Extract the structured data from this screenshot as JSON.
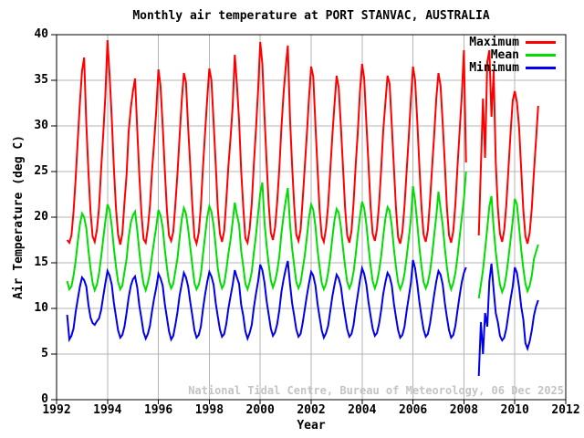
{
  "title": "Monthly air temperature at PORT STANVAC, AUSTRALIA",
  "watermark": "National Tidal Centre, Bureau of Meteorology, 06 Dec 2025",
  "colors": {
    "background": "#ffffff",
    "axis": "#000000",
    "grid": "#b4b4b4",
    "watermark": "#c4c4c4",
    "maximum": "#ff0000",
    "mean": "#00dd00",
    "minimum": "#0000ee"
  },
  "chart_data": {
    "type": "line",
    "title": "Monthly air temperature at PORT STANVAC, AUSTRALIA",
    "xlabel": "Year",
    "ylabel": "Air Temperature (deg C)",
    "xlim": [
      1992,
      2012
    ],
    "ylim": [
      0,
      40
    ],
    "x_ticks": [
      1992,
      1994,
      1996,
      1998,
      2000,
      2002,
      2004,
      2006,
      2008,
      2010,
      2012
    ],
    "y_ticks": [
      0,
      5,
      10,
      15,
      20,
      25,
      30,
      35,
      40
    ],
    "grid": true,
    "legend_position": "top-right",
    "x_start": {
      "year": 1992,
      "month": 6
    },
    "x_unit": "monthly",
    "data_gap": "Mar 2008 - Jul 2008",
    "series": [
      {
        "name": "Maximum",
        "color": "#ff0000",
        "values": [
          17.5,
          17.2,
          18.0,
          20.6,
          24.2,
          28.4,
          32.6,
          36.0,
          37.5,
          30.2,
          25.0,
          20.6,
          17.9,
          17.3,
          18.6,
          21.0,
          25.2,
          29.0,
          33.4,
          39.4,
          35.6,
          30.8,
          25.4,
          21.0,
          18.1,
          17.0,
          18.2,
          21.6,
          24.6,
          29.4,
          32.0,
          33.8,
          35.2,
          29.6,
          24.6,
          20.4,
          17.6,
          17.2,
          18.8,
          21.2,
          25.0,
          28.2,
          31.8,
          36.2,
          34.4,
          30.0,
          25.2,
          20.8,
          18.0,
          17.4,
          18.4,
          21.4,
          24.8,
          28.8,
          32.8,
          35.8,
          34.8,
          29.8,
          25.6,
          21.2,
          17.8,
          17.1,
          18.3,
          21.1,
          25.4,
          29.2,
          33.0,
          36.3,
          35.0,
          30.4,
          25.8,
          20.9,
          18.2,
          17.3,
          18.5,
          21.8,
          25.6,
          28.6,
          32.2,
          37.8,
          34.6,
          30.6,
          25.1,
          21.1,
          17.7,
          17.2,
          18.7,
          21.5,
          25.8,
          29.6,
          34.0,
          39.2,
          36.8,
          31.0,
          26.0,
          21.4,
          18.3,
          17.5,
          18.9,
          21.7,
          25.3,
          29.8,
          33.6,
          36.4,
          38.8,
          30.9,
          25.7,
          21.3,
          18.1,
          17.4,
          18.6,
          21.9,
          25.5,
          29.1,
          33.2,
          36.5,
          35.4,
          30.1,
          25.3,
          20.7,
          17.9,
          17.3,
          18.8,
          21.3,
          25.1,
          28.9,
          32.4,
          35.5,
          34.2,
          29.9,
          25.5,
          21.0,
          18.0,
          17.2,
          18.5,
          21.6,
          25.7,
          29.3,
          33.8,
          36.8,
          35.2,
          30.3,
          25.9,
          21.2,
          18.2,
          17.4,
          18.7,
          21.4,
          25.2,
          29.5,
          32.6,
          35.5,
          34.6,
          30.0,
          25.4,
          20.9,
          17.8,
          17.1,
          18.4,
          21.2,
          25.0,
          28.7,
          32.9,
          36.5,
          35.0,
          30.5,
          25.6,
          21.1,
          18.1,
          17.3,
          18.6,
          21.7,
          25.4,
          29.0,
          33.1,
          35.8,
          34.4,
          30.2,
          25.8,
          21.0,
          18.0,
          17.2,
          18.5,
          21.5,
          25.6,
          29.4,
          33.4,
          38.3,
          26.0,
          null,
          null,
          null,
          null,
          null,
          18.0,
          25.5,
          33.0,
          26.5,
          37.0,
          38.3,
          31.0,
          36.0,
          26.0,
          21.0,
          18.2,
          17.3,
          18.6,
          21.4,
          25.3,
          29.2,
          32.8,
          33.8,
          32.6,
          29.8,
          25.2,
          20.8,
          17.9,
          17.1,
          18.3,
          21.0,
          24.9,
          28.4,
          32.2
        ]
      },
      {
        "name": "Mean",
        "color": "#00dd00",
        "values": [
          13.0,
          12.1,
          12.4,
          13.6,
          15.2,
          17.3,
          19.2,
          20.4,
          20.0,
          18.8,
          16.4,
          14.4,
          12.8,
          12.0,
          12.6,
          13.8,
          15.6,
          17.6,
          19.6,
          21.4,
          20.8,
          19.0,
          16.6,
          14.6,
          12.9,
          12.1,
          12.5,
          14.0,
          15.4,
          17.8,
          19.4,
          20.2,
          20.6,
          18.6,
          16.2,
          14.2,
          12.7,
          12.0,
          12.8,
          13.9,
          15.8,
          17.4,
          19.0,
          20.8,
          20.2,
          18.9,
          16.5,
          14.5,
          12.9,
          12.2,
          12.7,
          14.1,
          15.5,
          17.7,
          19.8,
          21.0,
          20.4,
          18.7,
          16.7,
          14.7,
          12.8,
          12.1,
          12.6,
          13.7,
          15.9,
          17.9,
          20.0,
          21.2,
          20.6,
          19.1,
          16.8,
          14.4,
          13.0,
          12.2,
          12.7,
          14.2,
          16.0,
          17.5,
          19.5,
          21.6,
          20.3,
          19.2,
          16.3,
          14.6,
          12.7,
          12.1,
          12.9,
          14.0,
          16.1,
          18.0,
          20.4,
          22.6,
          23.8,
          19.4,
          16.9,
          14.8,
          13.1,
          12.3,
          13.0,
          14.1,
          15.7,
          18.2,
          20.2,
          21.8,
          23.2,
          19.3,
          16.6,
          14.7,
          12.9,
          12.2,
          12.8,
          14.3,
          15.8,
          17.8,
          20.0,
          21.4,
          20.8,
          19.0,
          16.4,
          14.5,
          12.8,
          12.1,
          12.7,
          13.9,
          15.6,
          17.7,
          19.7,
          20.9,
          20.5,
          18.9,
          16.6,
          14.6,
          12.9,
          12.2,
          12.8,
          14.0,
          15.9,
          18.1,
          20.1,
          21.7,
          21.0,
          19.2,
          16.8,
          14.7,
          13.0,
          12.2,
          12.9,
          14.1,
          15.7,
          17.9,
          19.9,
          21.1,
          20.7,
          19.0,
          16.5,
          14.5,
          12.8,
          12.1,
          12.7,
          13.8,
          15.6,
          17.6,
          19.8,
          23.4,
          21.8,
          19.3,
          16.7,
          14.6,
          12.9,
          12.2,
          12.8,
          14.0,
          15.8,
          18.0,
          20.2,
          22.8,
          20.9,
          19.1,
          16.6,
          14.5,
          12.9,
          12.1,
          12.8,
          13.9,
          15.7,
          17.8,
          20.0,
          22.0,
          25.0,
          null,
          null,
          null,
          null,
          null,
          11.1,
          12.6,
          14.2,
          16.4,
          18.8,
          21.2,
          22.3,
          18.8,
          16.2,
          14.3,
          12.6,
          11.8,
          12.4,
          13.7,
          15.5,
          17.5,
          19.6,
          22.0,
          21.4,
          18.9,
          16.4,
          14.4,
          12.7,
          11.9,
          12.5,
          13.6,
          15.4,
          16.2,
          17.0
        ]
      },
      {
        "name": "Minimum",
        "color": "#0000ee",
        "values": [
          9.3,
          6.6,
          7.0,
          7.8,
          9.6,
          11.0,
          12.4,
          13.4,
          13.1,
          12.4,
          10.4,
          9.0,
          8.4,
          8.2,
          8.6,
          8.9,
          9.8,
          11.3,
          12.8,
          14.1,
          13.6,
          12.6,
          10.6,
          9.1,
          7.6,
          6.8,
          7.1,
          8.0,
          9.5,
          11.2,
          12.5,
          13.2,
          13.5,
          12.3,
          10.3,
          8.9,
          7.4,
          6.7,
          7.2,
          8.1,
          9.7,
          11.1,
          12.3,
          13.8,
          13.3,
          12.5,
          10.5,
          9.0,
          7.5,
          6.6,
          7.0,
          8.2,
          9.6,
          11.4,
          12.7,
          13.9,
          13.4,
          12.4,
          10.7,
          9.2,
          7.6,
          6.8,
          7.1,
          8.0,
          9.9,
          11.5,
          12.9,
          14.0,
          13.5,
          12.6,
          10.6,
          9.1,
          7.7,
          6.9,
          7.2,
          8.3,
          10.0,
          11.3,
          12.6,
          14.2,
          13.4,
          12.7,
          10.4,
          9.2,
          7.5,
          6.7,
          7.3,
          8.2,
          10.1,
          11.6,
          13.0,
          14.8,
          14.2,
          12.8,
          10.8,
          9.3,
          7.8,
          7.0,
          7.4,
          8.3,
          9.8,
          11.8,
          13.2,
          14.3,
          15.2,
          12.7,
          10.6,
          9.2,
          7.7,
          6.9,
          7.2,
          8.4,
          9.9,
          11.4,
          12.8,
          14.0,
          13.6,
          12.5,
          10.5,
          9.0,
          7.6,
          6.8,
          7.3,
          8.1,
          9.7,
          11.3,
          12.6,
          13.7,
          13.3,
          12.4,
          10.6,
          9.1,
          7.7,
          6.9,
          7.2,
          8.2,
          10.0,
          11.5,
          13.1,
          14.4,
          13.8,
          12.6,
          10.7,
          9.2,
          7.8,
          7.0,
          7.3,
          8.3,
          9.8,
          11.6,
          12.9,
          13.9,
          13.5,
          12.5,
          10.5,
          9.0,
          7.6,
          6.8,
          7.1,
          8.0,
          9.7,
          11.2,
          12.8,
          15.3,
          14.4,
          12.7,
          10.7,
          9.1,
          7.7,
          6.9,
          7.2,
          8.3,
          9.9,
          11.5,
          13.0,
          14.1,
          13.7,
          12.6,
          10.6,
          9.0,
          7.6,
          6.8,
          7.1,
          8.1,
          9.8,
          11.4,
          12.9,
          13.9,
          14.5,
          null,
          null,
          null,
          null,
          null,
          2.6,
          8.5,
          5.0,
          9.5,
          8.0,
          13.0,
          14.9,
          12.0,
          9.5,
          8.5,
          7.0,
          6.5,
          6.8,
          7.8,
          9.4,
          11.0,
          12.4,
          14.5,
          13.9,
          12.3,
          10.2,
          8.8,
          6.2,
          5.6,
          6.4,
          7.6,
          9.2,
          10.2,
          10.9
        ]
      }
    ]
  }
}
